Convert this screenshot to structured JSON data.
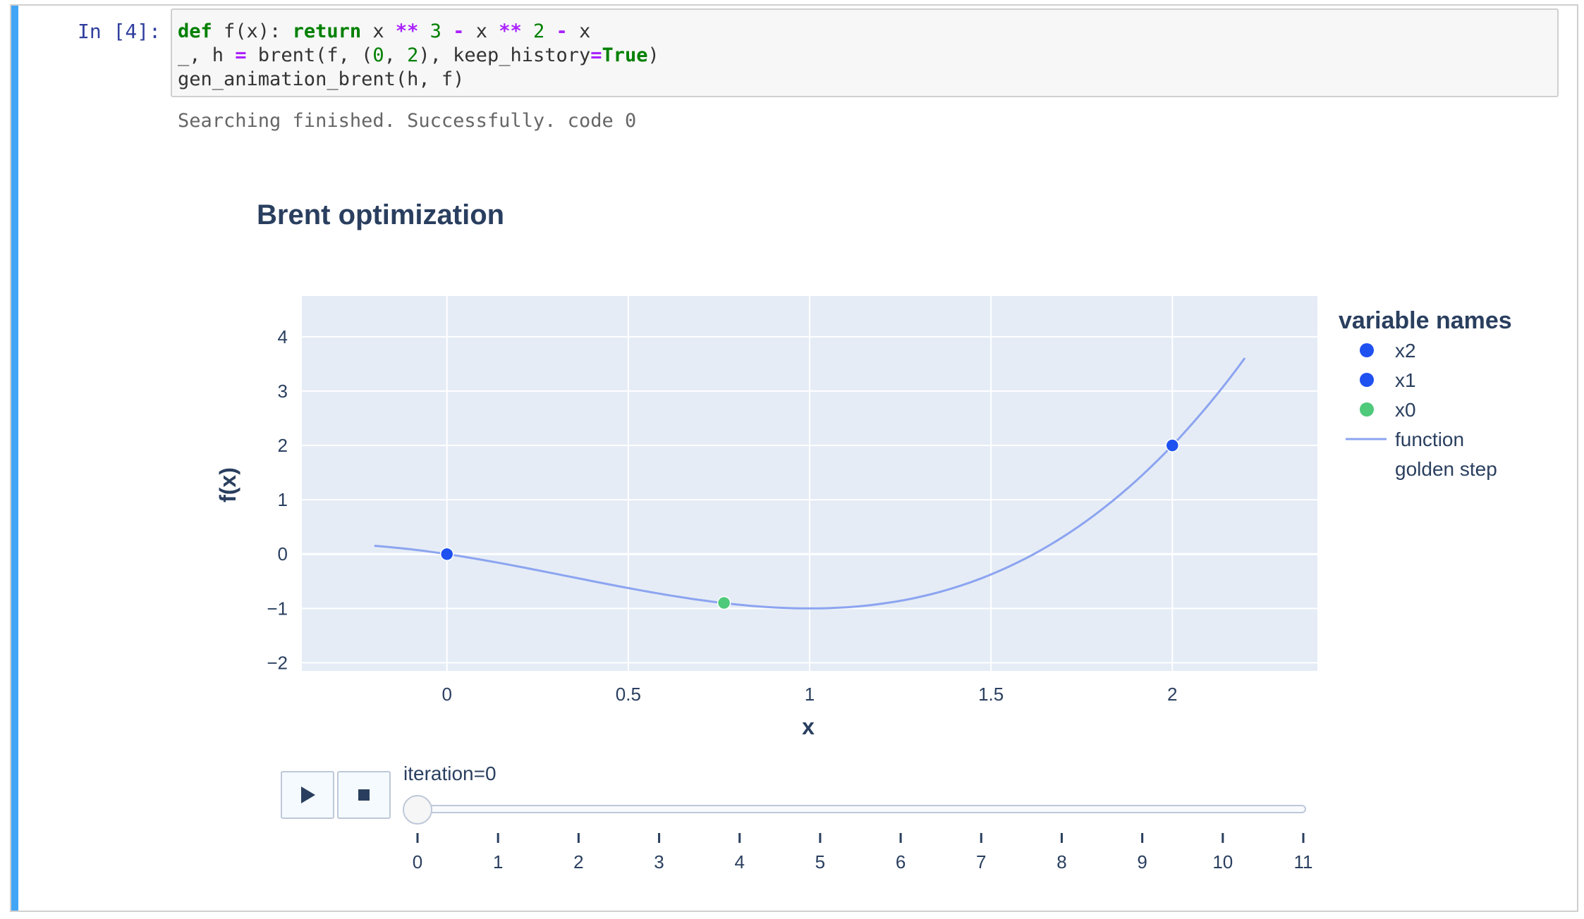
{
  "notebook": {
    "prompt": "In [4]:",
    "code": {
      "line1": {
        "def": "def",
        "fn": " f(x): ",
        "ret": "return",
        "a": " x ",
        "op1": "**",
        "n1": " 3 ",
        "op2": "-",
        "b": " x ",
        "op3": "**",
        "n2": " 2 ",
        "op4": "-",
        "c": " x"
      },
      "line2": {
        "a": "_, h ",
        "eq": "=",
        "b": " brent(f, (",
        "n0": "0",
        "comma": ", ",
        "n2": "2",
        "c": "), keep_history",
        "eq2": "=",
        "true": "True",
        "d": ")"
      },
      "line3": "gen_animation_brent(h, f)"
    },
    "output": "Searching finished. Successfully. code 0"
  },
  "chart_data": {
    "type": "scatter",
    "title": "Brent optimization",
    "xlabel": "x",
    "ylabel": "f(x)",
    "xlim": [
      -0.4,
      2.4
    ],
    "ylim": [
      -2.15,
      4.75
    ],
    "xticks": [
      0,
      0.5,
      1,
      1.5,
      2
    ],
    "xtick_labels": [
      "0",
      "0.5",
      "1",
      "1.5",
      "2"
    ],
    "yticks": [
      -2,
      -1,
      0,
      1,
      2,
      3,
      4
    ],
    "ytick_labels": [
      "−2",
      "−1",
      "0",
      "1",
      "2",
      "3",
      "4"
    ],
    "grid": true,
    "legend_title": "variable names",
    "legend_position": "right",
    "series": [
      {
        "name": "x2",
        "kind": "marker",
        "color": "#1f51f0",
        "points": [
          [
            2,
            2
          ]
        ]
      },
      {
        "name": "x1",
        "kind": "marker",
        "color": "#1f51f0",
        "points": [
          [
            0,
            0
          ]
        ]
      },
      {
        "name": "x0",
        "kind": "marker",
        "color": "#4fc97a",
        "points": [
          [
            0.764,
            -0.898
          ]
        ]
      },
      {
        "name": "function",
        "kind": "line",
        "color": "#8ca4f0",
        "x_range": [
          -0.2,
          2.2
        ],
        "formula": "x^3 - x^2 - x"
      },
      {
        "name": "golden step",
        "kind": "none"
      }
    ]
  },
  "controls": {
    "slider_label": "iteration=0",
    "slider_value": 0,
    "slider_min": 0,
    "slider_max": 11,
    "slider_ticks": [
      "0",
      "1",
      "2",
      "3",
      "4",
      "5",
      "6",
      "7",
      "8",
      "9",
      "10",
      "11"
    ]
  },
  "colors": {
    "plot_bg": "#e5ecf6",
    "grid": "#ffffff",
    "text": "#2a3f5f",
    "cell_accent": "#42a5f5"
  }
}
